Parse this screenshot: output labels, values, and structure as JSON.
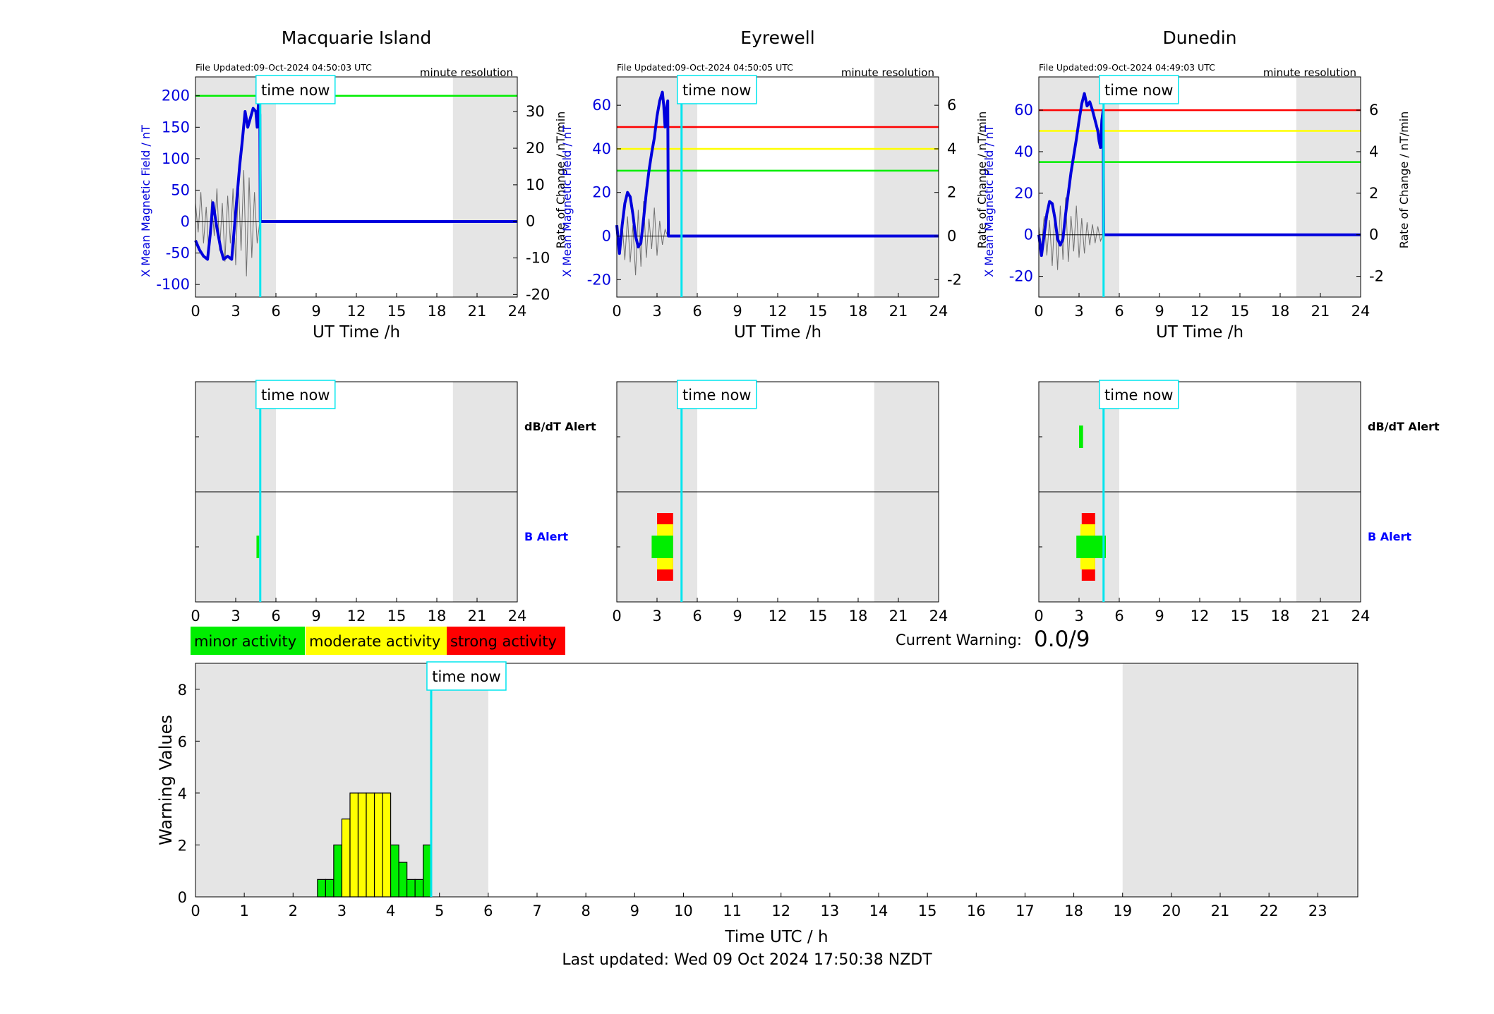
{
  "footer": {
    "last_updated": "Last updated: Wed 09 Oct 2024 17:50:38 NZDT"
  },
  "colors": {
    "shade": "#e5e5e5",
    "time_now_line": "#00e5ee",
    "field_line": "#0000dd",
    "rate_line": "#707070",
    "green": "#00ee00",
    "yellow": "#ffff00",
    "red": "#ff0000",
    "b_alert_label": "#0000ff",
    "dbdt_label": "#000000"
  },
  "legend": {
    "minor": "minor activity",
    "moderate": "moderate activity",
    "strong": "strong activity"
  },
  "current_warning": {
    "label": "Current Warning:",
    "value": "0.0/9"
  },
  "chart_data": [
    {
      "type": "line",
      "title": "Macquarie Island",
      "file_updated": "File Updated:09-Oct-2024 04:50:03 UTC",
      "resolution": "minute resolution",
      "xlabel": "UT Time /h",
      "ylabel": "X Mean Magnetic Field / nT",
      "ylabel_right": "Rate of Change / nT/min",
      "time_now_label": "time now",
      "xlim": [
        0,
        24
      ],
      "xticks": [
        0,
        3,
        6,
        9,
        12,
        15,
        18,
        21,
        24
      ],
      "ylim": [
        -120,
        230
      ],
      "yticks": [
        -100,
        -50,
        0,
        50,
        100,
        150,
        200
      ],
      "ylim_right": [
        -20.7,
        39.5
      ],
      "yticks_right": [
        -20,
        -10,
        0,
        10,
        20,
        30
      ],
      "shaded_intervals": [
        [
          0,
          6
        ],
        [
          19.2,
          24
        ]
      ],
      "time_now": 4.83,
      "thresholds": [
        {
          "level": "minor",
          "value": 200
        }
      ],
      "field_x": [
        0.0,
        0.3,
        0.6,
        0.9,
        1.1,
        1.3,
        1.6,
        1.9,
        2.1,
        2.4,
        2.7,
        2.9,
        3.1,
        3.3,
        3.5,
        3.7,
        3.9,
        4.1,
        4.3,
        4.5,
        4.6,
        4.7,
        4.8,
        4.83,
        4.9,
        6,
        12,
        18,
        24
      ],
      "field_y": [
        -30,
        -45,
        -55,
        -60,
        -20,
        30,
        -10,
        -45,
        -60,
        -55,
        -60,
        -10,
        40,
        90,
        130,
        175,
        150,
        165,
        180,
        175,
        150,
        190,
        170,
        0,
        0,
        0,
        0,
        0,
        0
      ],
      "rate_x": [
        0.0,
        0.2,
        0.4,
        0.6,
        0.8,
        1.0,
        1.2,
        1.4,
        1.6,
        1.8,
        2.0,
        2.2,
        2.4,
        2.6,
        2.8,
        3.0,
        3.2,
        3.4,
        3.6,
        3.8,
        4.0,
        4.2,
        4.4,
        4.6,
        4.8
      ],
      "rate_y": [
        5,
        -3,
        8,
        -6,
        4,
        -9,
        6,
        -4,
        9,
        -8,
        5,
        -11,
        7,
        -6,
        9,
        -12,
        11,
        -8,
        14,
        -15,
        12,
        -10,
        8,
        -6,
        0
      ],
      "alerts": {
        "dbdt_label": "dB/dT Alert",
        "b_label": "B Alert",
        "b_bars": [
          {
            "x0": 4.55,
            "x1": 4.75,
            "level": "minor",
            "height": 1
          }
        ],
        "dbdt_bars": []
      }
    },
    {
      "type": "line",
      "title": "Eyrewell",
      "file_updated": "File Updated:09-Oct-2024 04:50:05 UTC",
      "resolution": "minute resolution",
      "xlabel": "UT Time /h",
      "ylabel": "X Mean Magnetic Field / nT",
      "ylabel_right": "Rate of Change / nT/min",
      "time_now_label": "time now",
      "xlim": [
        0,
        24
      ],
      "xticks": [
        0,
        3,
        6,
        9,
        12,
        15,
        18,
        21,
        24
      ],
      "ylim": [
        -28,
        73
      ],
      "yticks": [
        -20,
        0,
        20,
        40,
        60
      ],
      "ylim_right": [
        -2.8,
        7.3
      ],
      "yticks_right": [
        -2,
        0,
        2,
        4,
        6
      ],
      "shaded_intervals": [
        [
          0,
          6
        ],
        [
          19.2,
          24
        ]
      ],
      "time_now": 4.83,
      "thresholds": [
        {
          "level": "strong",
          "value": 50
        },
        {
          "level": "moderate",
          "value": 40
        },
        {
          "level": "minor",
          "value": 30
        }
      ],
      "field_x": [
        0.0,
        0.2,
        0.4,
        0.6,
        0.8,
        1.0,
        1.2,
        1.4,
        1.6,
        1.8,
        2.0,
        2.2,
        2.4,
        2.6,
        2.8,
        3.0,
        3.2,
        3.4,
        3.5,
        3.6,
        3.7,
        3.8,
        3.85,
        3.9,
        6,
        12,
        18,
        24
      ],
      "field_y": [
        5,
        -8,
        5,
        15,
        20,
        18,
        10,
        0,
        -5,
        -3,
        8,
        20,
        30,
        38,
        45,
        55,
        62,
        66,
        60,
        50,
        58,
        62,
        0,
        0,
        0,
        0,
        0,
        0
      ],
      "rate_x": [
        0.0,
        0.2,
        0.4,
        0.6,
        0.8,
        1.0,
        1.2,
        1.4,
        1.6,
        1.8,
        2.0,
        2.2,
        2.4,
        2.6,
        2.8,
        3.0,
        3.2,
        3.4,
        3.6,
        3.8
      ],
      "rate_y": [
        0.3,
        -0.8,
        0.6,
        -1.1,
        0.9,
        -1.2,
        0.5,
        -1.8,
        1.2,
        -1.4,
        1.6,
        -1.0,
        0.8,
        -0.6,
        1.3,
        -0.9,
        0.7,
        -0.4,
        0.3,
        0
      ],
      "alerts": {
        "dbdt_label": "",
        "b_label": "",
        "b_bars": [
          {
            "x0": 2.6,
            "x1": 4.2,
            "level": "minor",
            "height": 1
          },
          {
            "x0": 3.0,
            "x1": 4.2,
            "level": "moderate",
            "height": 2
          },
          {
            "x0": 3.0,
            "x1": 4.2,
            "level": "strong",
            "height": 3
          }
        ],
        "dbdt_bars": []
      }
    },
    {
      "type": "line",
      "title": "Dunedin",
      "file_updated": "File Updated:09-Oct-2024 04:49:03 UTC",
      "resolution": "minute resolution",
      "xlabel": "UT Time /h",
      "ylabel": "X Mean Magnetic Field / nT",
      "ylabel_right": "Rate of Change / nT/min",
      "time_now_label": "time now",
      "xlim": [
        0,
        24
      ],
      "xticks": [
        0,
        3,
        6,
        9,
        12,
        15,
        18,
        21,
        24
      ],
      "ylim": [
        -30,
        76
      ],
      "yticks": [
        -20,
        0,
        20,
        40,
        60
      ],
      "ylim_right": [
        -3.0,
        7.6
      ],
      "yticks_right": [
        -2,
        0,
        2,
        4,
        6
      ],
      "shaded_intervals": [
        [
          0,
          6
        ],
        [
          19.2,
          24
        ]
      ],
      "time_now": 4.83,
      "thresholds": [
        {
          "level": "strong",
          "value": 60
        },
        {
          "level": "moderate",
          "value": 50
        },
        {
          "level": "minor",
          "value": 35
        }
      ],
      "field_x": [
        0.0,
        0.2,
        0.4,
        0.6,
        0.8,
        1.0,
        1.2,
        1.4,
        1.6,
        1.8,
        2.0,
        2.2,
        2.4,
        2.6,
        2.8,
        3.0,
        3.2,
        3.4,
        3.6,
        3.8,
        4.0,
        4.2,
        4.4,
        4.5,
        4.6,
        4.7,
        4.8,
        4.83,
        4.9,
        6,
        12,
        18,
        24
      ],
      "field_y": [
        0,
        -10,
        0,
        10,
        16,
        15,
        8,
        -2,
        -5,
        -2,
        10,
        20,
        30,
        38,
        46,
        55,
        63,
        68,
        62,
        64,
        60,
        55,
        50,
        45,
        42,
        55,
        60,
        0,
        0,
        0,
        0,
        0,
        0
      ],
      "rate_x": [
        0.0,
        0.2,
        0.4,
        0.6,
        0.8,
        1.0,
        1.2,
        1.4,
        1.6,
        1.8,
        2.0,
        2.2,
        2.4,
        2.6,
        2.8,
        3.0,
        3.2,
        3.4,
        3.6,
        3.8,
        4.0,
        4.2,
        4.4,
        4.6,
        4.8
      ],
      "rate_y": [
        0.4,
        -0.6,
        0.9,
        -1.0,
        0.7,
        -1.5,
        1.1,
        -1.7,
        1.4,
        -1.2,
        1.8,
        -1.3,
        0.9,
        -0.8,
        1.4,
        -1.1,
        0.8,
        -0.9,
        0.6,
        -0.5,
        0.5,
        -0.4,
        0.4,
        -0.3,
        0
      ],
      "alerts": {
        "dbdt_label": "dB/dT Alert",
        "b_label": "B Alert",
        "b_bars": [
          {
            "x0": 2.8,
            "x1": 5.0,
            "level": "minor",
            "height": 1
          },
          {
            "x0": 3.1,
            "x1": 4.2,
            "level": "moderate",
            "height": 2
          },
          {
            "x0": 3.2,
            "x1": 4.2,
            "level": "strong",
            "height": 3
          }
        ],
        "dbdt_bars": [
          {
            "x0": 3.0,
            "x1": 3.3,
            "level": "minor",
            "height": 1
          }
        ]
      }
    },
    {
      "type": "bar",
      "xlabel": "Time UTC / h",
      "ylabel": "Warning Values",
      "time_now_label": "time now",
      "xlim": [
        0,
        24
      ],
      "xticks": [
        0,
        1,
        2,
        3,
        4,
        5,
        6,
        7,
        8,
        9,
        10,
        11,
        12,
        13,
        14,
        15,
        16,
        17,
        18,
        19,
        20,
        21,
        22,
        23
      ],
      "ylim": [
        0,
        9
      ],
      "yticks": [
        0,
        2,
        4,
        6,
        8
      ],
      "shaded_intervals": [
        [
          0,
          6
        ],
        [
          19,
          24
        ]
      ],
      "time_now": 4.83,
      "bar_width": 0.167,
      "bar_starts": [
        2.5,
        2.667,
        2.833,
        3.0,
        3.167,
        3.333,
        3.5,
        3.667,
        3.833,
        4.0,
        4.167,
        4.333,
        4.5,
        4.667
      ],
      "values": [
        0.67,
        0.67,
        2.0,
        3.0,
        4.0,
        4.0,
        4.0,
        4.0,
        4.0,
        2.0,
        1.33,
        0.67,
        0.67,
        2.0
      ],
      "levels": [
        "minor",
        "minor",
        "minor",
        "moderate",
        "moderate",
        "moderate",
        "moderate",
        "moderate",
        "moderate",
        "minor",
        "minor",
        "minor",
        "minor",
        "minor"
      ]
    }
  ]
}
